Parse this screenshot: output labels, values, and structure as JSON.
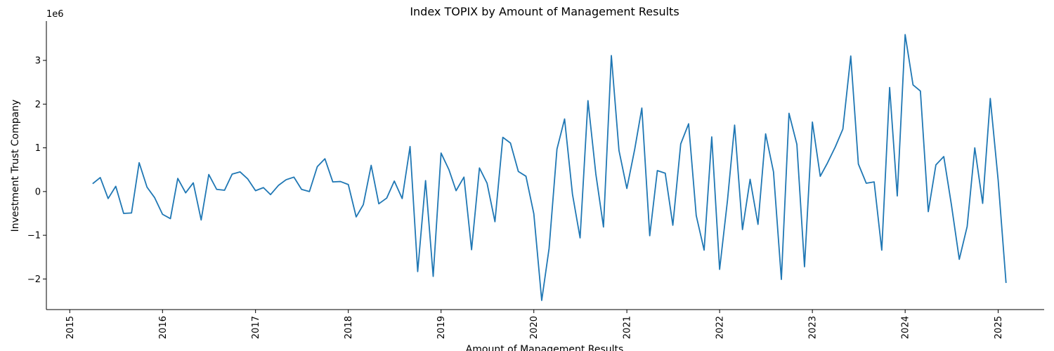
{
  "chart_data": {
    "type": "line",
    "title": "Index TOPIX by Amount of Management Results",
    "xlabel": "Amount of Management Results",
    "ylabel": "Investment Trust Company",
    "y_offset_label": "1e6",
    "y_scale": 1000000,
    "xlim": [
      "2014-10-01",
      "2025-07-01"
    ],
    "ylim": [
      -2.7,
      3.9
    ],
    "x_ticks": [
      {
        "date": "2015-01-01",
        "label": "2015"
      },
      {
        "date": "2016-01-01",
        "label": "2016"
      },
      {
        "date": "2017-01-01",
        "label": "2017"
      },
      {
        "date": "2018-01-01",
        "label": "2018"
      },
      {
        "date": "2019-01-01",
        "label": "2019"
      },
      {
        "date": "2020-01-01",
        "label": "2020"
      },
      {
        "date": "2021-01-01",
        "label": "2021"
      },
      {
        "date": "2022-01-01",
        "label": "2022"
      },
      {
        "date": "2023-01-01",
        "label": "2023"
      },
      {
        "date": "2024-01-01",
        "label": "2024"
      },
      {
        "date": "2025-01-01",
        "label": "2025"
      }
    ],
    "y_ticks": [
      {
        "value": -2,
        "label": "−2"
      },
      {
        "value": -1,
        "label": "−1"
      },
      {
        "value": 0,
        "label": "0"
      },
      {
        "value": 1,
        "label": "1"
      },
      {
        "value": 2,
        "label": "2"
      },
      {
        "value": 3,
        "label": "3"
      }
    ],
    "grid": false,
    "series": [
      {
        "color": "#1f77b4",
        "x": [
          "2015-04-01",
          "2015-05-01",
          "2015-06-01",
          "2015-07-01",
          "2015-08-01",
          "2015-09-01",
          "2015-10-01",
          "2015-11-01",
          "2015-12-01",
          "2016-01-01",
          "2016-02-01",
          "2016-03-01",
          "2016-04-01",
          "2016-05-01",
          "2016-06-01",
          "2016-07-01",
          "2016-08-01",
          "2016-09-01",
          "2016-10-01",
          "2016-11-01",
          "2016-12-01",
          "2017-01-01",
          "2017-02-01",
          "2017-03-01",
          "2017-04-01",
          "2017-05-01",
          "2017-06-01",
          "2017-07-01",
          "2017-08-01",
          "2017-09-01",
          "2017-10-01",
          "2017-11-01",
          "2017-12-01",
          "2018-01-01",
          "2018-02-01",
          "2018-03-01",
          "2018-04-01",
          "2018-05-01",
          "2018-06-01",
          "2018-07-01",
          "2018-08-01",
          "2018-09-01",
          "2018-10-01",
          "2018-11-01",
          "2018-12-01",
          "2019-01-01",
          "2019-02-01",
          "2019-03-01",
          "2019-04-01",
          "2019-05-01",
          "2019-06-01",
          "2019-07-01",
          "2019-08-01",
          "2019-09-01",
          "2019-10-01",
          "2019-11-01",
          "2019-12-01",
          "2020-01-01",
          "2020-02-01",
          "2020-03-01",
          "2020-04-01",
          "2020-05-01",
          "2020-06-01",
          "2020-07-01",
          "2020-08-01",
          "2020-09-01",
          "2020-10-01",
          "2020-11-01",
          "2020-12-01",
          "2021-01-01",
          "2021-02-01",
          "2021-03-01",
          "2021-04-01",
          "2021-05-01",
          "2021-06-01",
          "2021-07-01",
          "2021-08-01",
          "2021-09-01",
          "2021-10-01",
          "2021-11-01",
          "2021-12-01",
          "2022-01-01",
          "2022-02-01",
          "2022-03-01",
          "2022-04-01",
          "2022-05-01",
          "2022-06-01",
          "2022-07-01",
          "2022-08-01",
          "2022-09-01",
          "2022-10-01",
          "2022-11-01",
          "2022-12-01",
          "2023-01-01",
          "2023-02-01",
          "2023-03-01",
          "2023-04-01",
          "2023-05-01",
          "2023-06-01",
          "2023-07-01",
          "2023-08-01",
          "2023-09-01",
          "2023-10-01",
          "2023-11-01",
          "2023-12-01",
          "2024-01-01",
          "2024-02-01",
          "2024-03-01",
          "2024-04-01",
          "2024-05-01",
          "2024-06-01",
          "2024-07-01",
          "2024-08-01",
          "2024-09-01",
          "2024-10-01",
          "2024-11-01",
          "2024-12-01",
          "2025-01-01",
          "2025-02-01"
        ],
        "y": [
          0.18,
          0.32,
          -0.16,
          0.12,
          -0.5,
          -0.49,
          0.66,
          0.1,
          -0.14,
          -0.52,
          -0.62,
          0.3,
          -0.03,
          0.2,
          -0.65,
          0.39,
          0.05,
          0.03,
          0.4,
          0.45,
          0.29,
          0.02,
          0.09,
          -0.07,
          0.14,
          0.27,
          0.33,
          0.05,
          0.0,
          0.57,
          0.75,
          0.22,
          0.23,
          0.16,
          -0.58,
          -0.3,
          0.6,
          -0.28,
          -0.15,
          0.24,
          -0.16,
          1.03,
          -1.83,
          0.25,
          -1.94,
          0.88,
          0.5,
          0.02,
          0.33,
          -1.33,
          0.54,
          0.19,
          -0.69,
          1.24,
          1.11,
          0.46,
          0.35,
          -0.51,
          -2.49,
          -1.3,
          0.97,
          1.66,
          -0.06,
          -1.06,
          2.08,
          0.4,
          -0.81,
          3.11,
          0.94,
          0.07,
          0.97,
          1.91,
          -1.01,
          0.48,
          0.42,
          -0.77,
          1.09,
          1.55,
          -0.55,
          -1.34,
          1.25,
          -1.78,
          -0.2,
          1.52,
          -0.87,
          0.28,
          -0.75,
          1.32,
          0.45,
          -2.01,
          1.79,
          1.08,
          -1.72,
          1.59,
          0.35,
          0.65,
          1.02,
          1.43,
          3.1,
          0.63,
          0.19,
          0.22,
          -1.34,
          2.38,
          -0.1,
          3.59,
          2.44,
          2.3,
          -0.46,
          0.61,
          0.8,
          -0.3,
          -1.55,
          -0.8,
          1.0,
          -0.27,
          2.13,
          0.26,
          -2.09
        ]
      }
    ]
  }
}
